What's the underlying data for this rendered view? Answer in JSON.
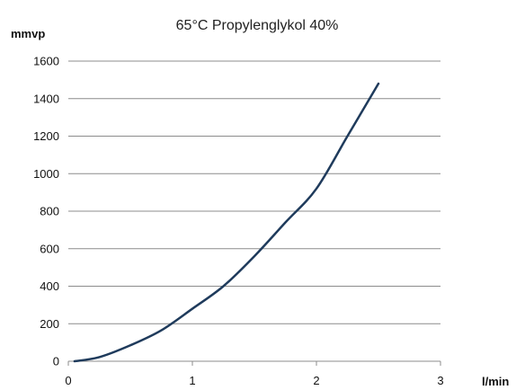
{
  "chart_data": {
    "type": "line",
    "title": "65°C Propylenglykol 40%",
    "xlabel": "l/min",
    "ylabel": "mmvp",
    "xlim": [
      0,
      3
    ],
    "ylim": [
      0,
      1600
    ],
    "x_ticks": [
      "0",
      "1",
      "2",
      "3"
    ],
    "y_ticks": [
      "0",
      "200",
      "400",
      "600",
      "800",
      "1000",
      "1200",
      "1400",
      "1600"
    ],
    "grid": "horizontal",
    "legend": "none",
    "series": [
      {
        "color": "#1f3b5c",
        "x": [
          0.05,
          0.25,
          0.5,
          0.75,
          1.0,
          1.25,
          1.5,
          1.75,
          2.0,
          2.25,
          2.5
        ],
        "y": [
          0,
          22,
          85,
          165,
          280,
          400,
          560,
          740,
          920,
          1200,
          1480
        ]
      }
    ]
  }
}
